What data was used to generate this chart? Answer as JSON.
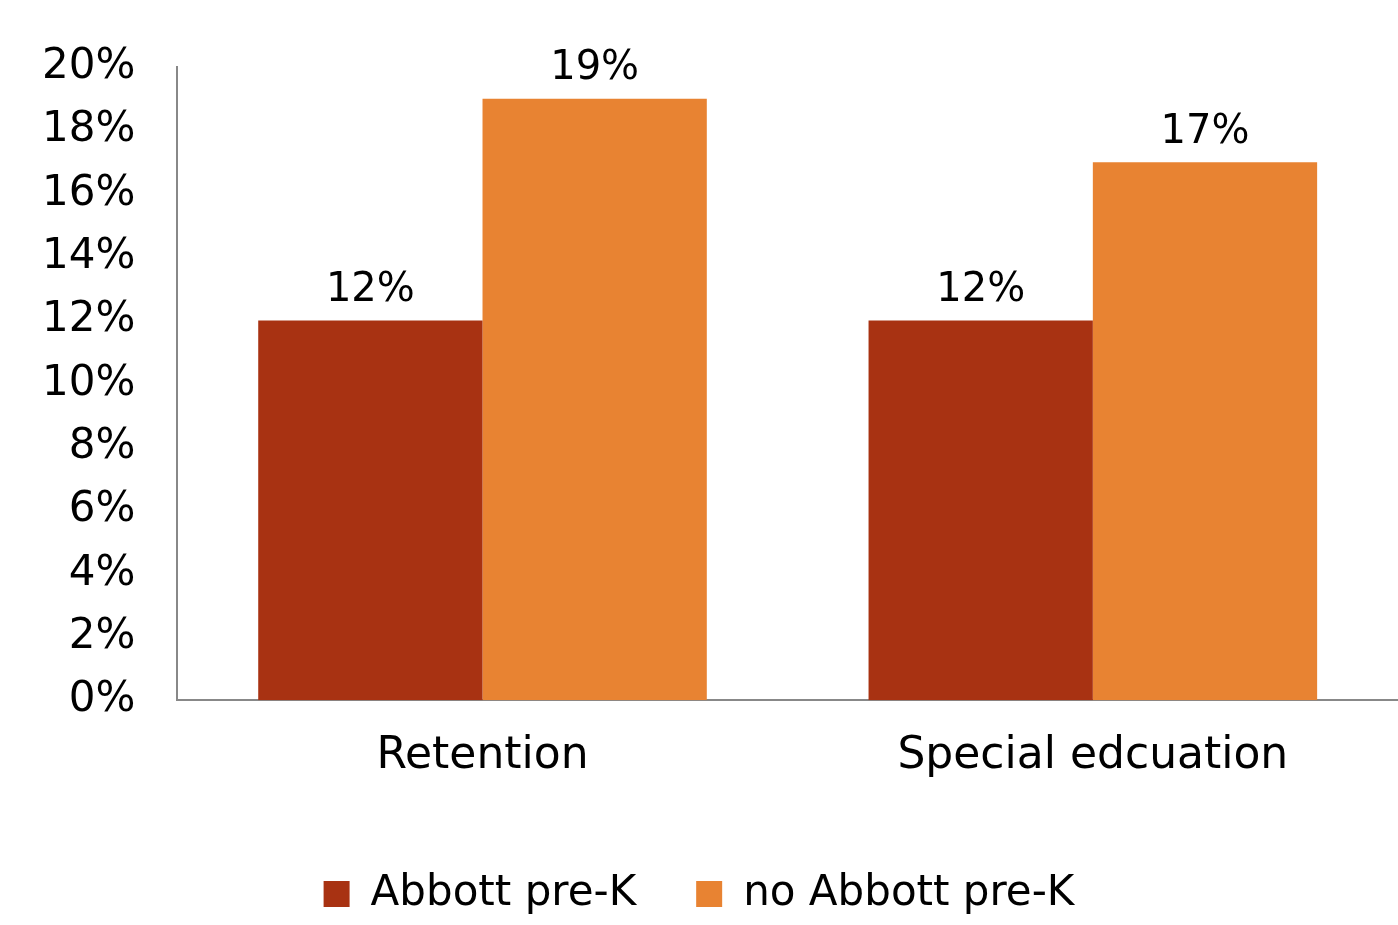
{
  "chart_data": {
    "type": "bar",
    "categories": [
      "Retention",
      "Special edcuation"
    ],
    "series": [
      {
        "name": "Abbott pre-K",
        "color": "#a83212",
        "values": [
          12,
          12
        ],
        "value_labels": [
          "12%",
          "12%"
        ]
      },
      {
        "name": "no Abbott pre-K",
        "color": "#e88332",
        "values": [
          19,
          17
        ],
        "value_labels": [
          "19%",
          "17%"
        ]
      }
    ],
    "ylim": [
      0,
      20
    ],
    "yticks": [
      {
        "value": 0,
        "label": "0%"
      },
      {
        "value": 2,
        "label": "2%"
      },
      {
        "value": 4,
        "label": "4%"
      },
      {
        "value": 6,
        "label": "6%"
      },
      {
        "value": 8,
        "label": "8%"
      },
      {
        "value": 10,
        "label": "10%"
      },
      {
        "value": 12,
        "label": "12%"
      },
      {
        "value": 14,
        "label": "14%"
      },
      {
        "value": 16,
        "label": "16%"
      },
      {
        "value": 18,
        "label": "18%"
      },
      {
        "value": 20,
        "label": "20%"
      }
    ],
    "grid": false,
    "legend": "bottom"
  }
}
